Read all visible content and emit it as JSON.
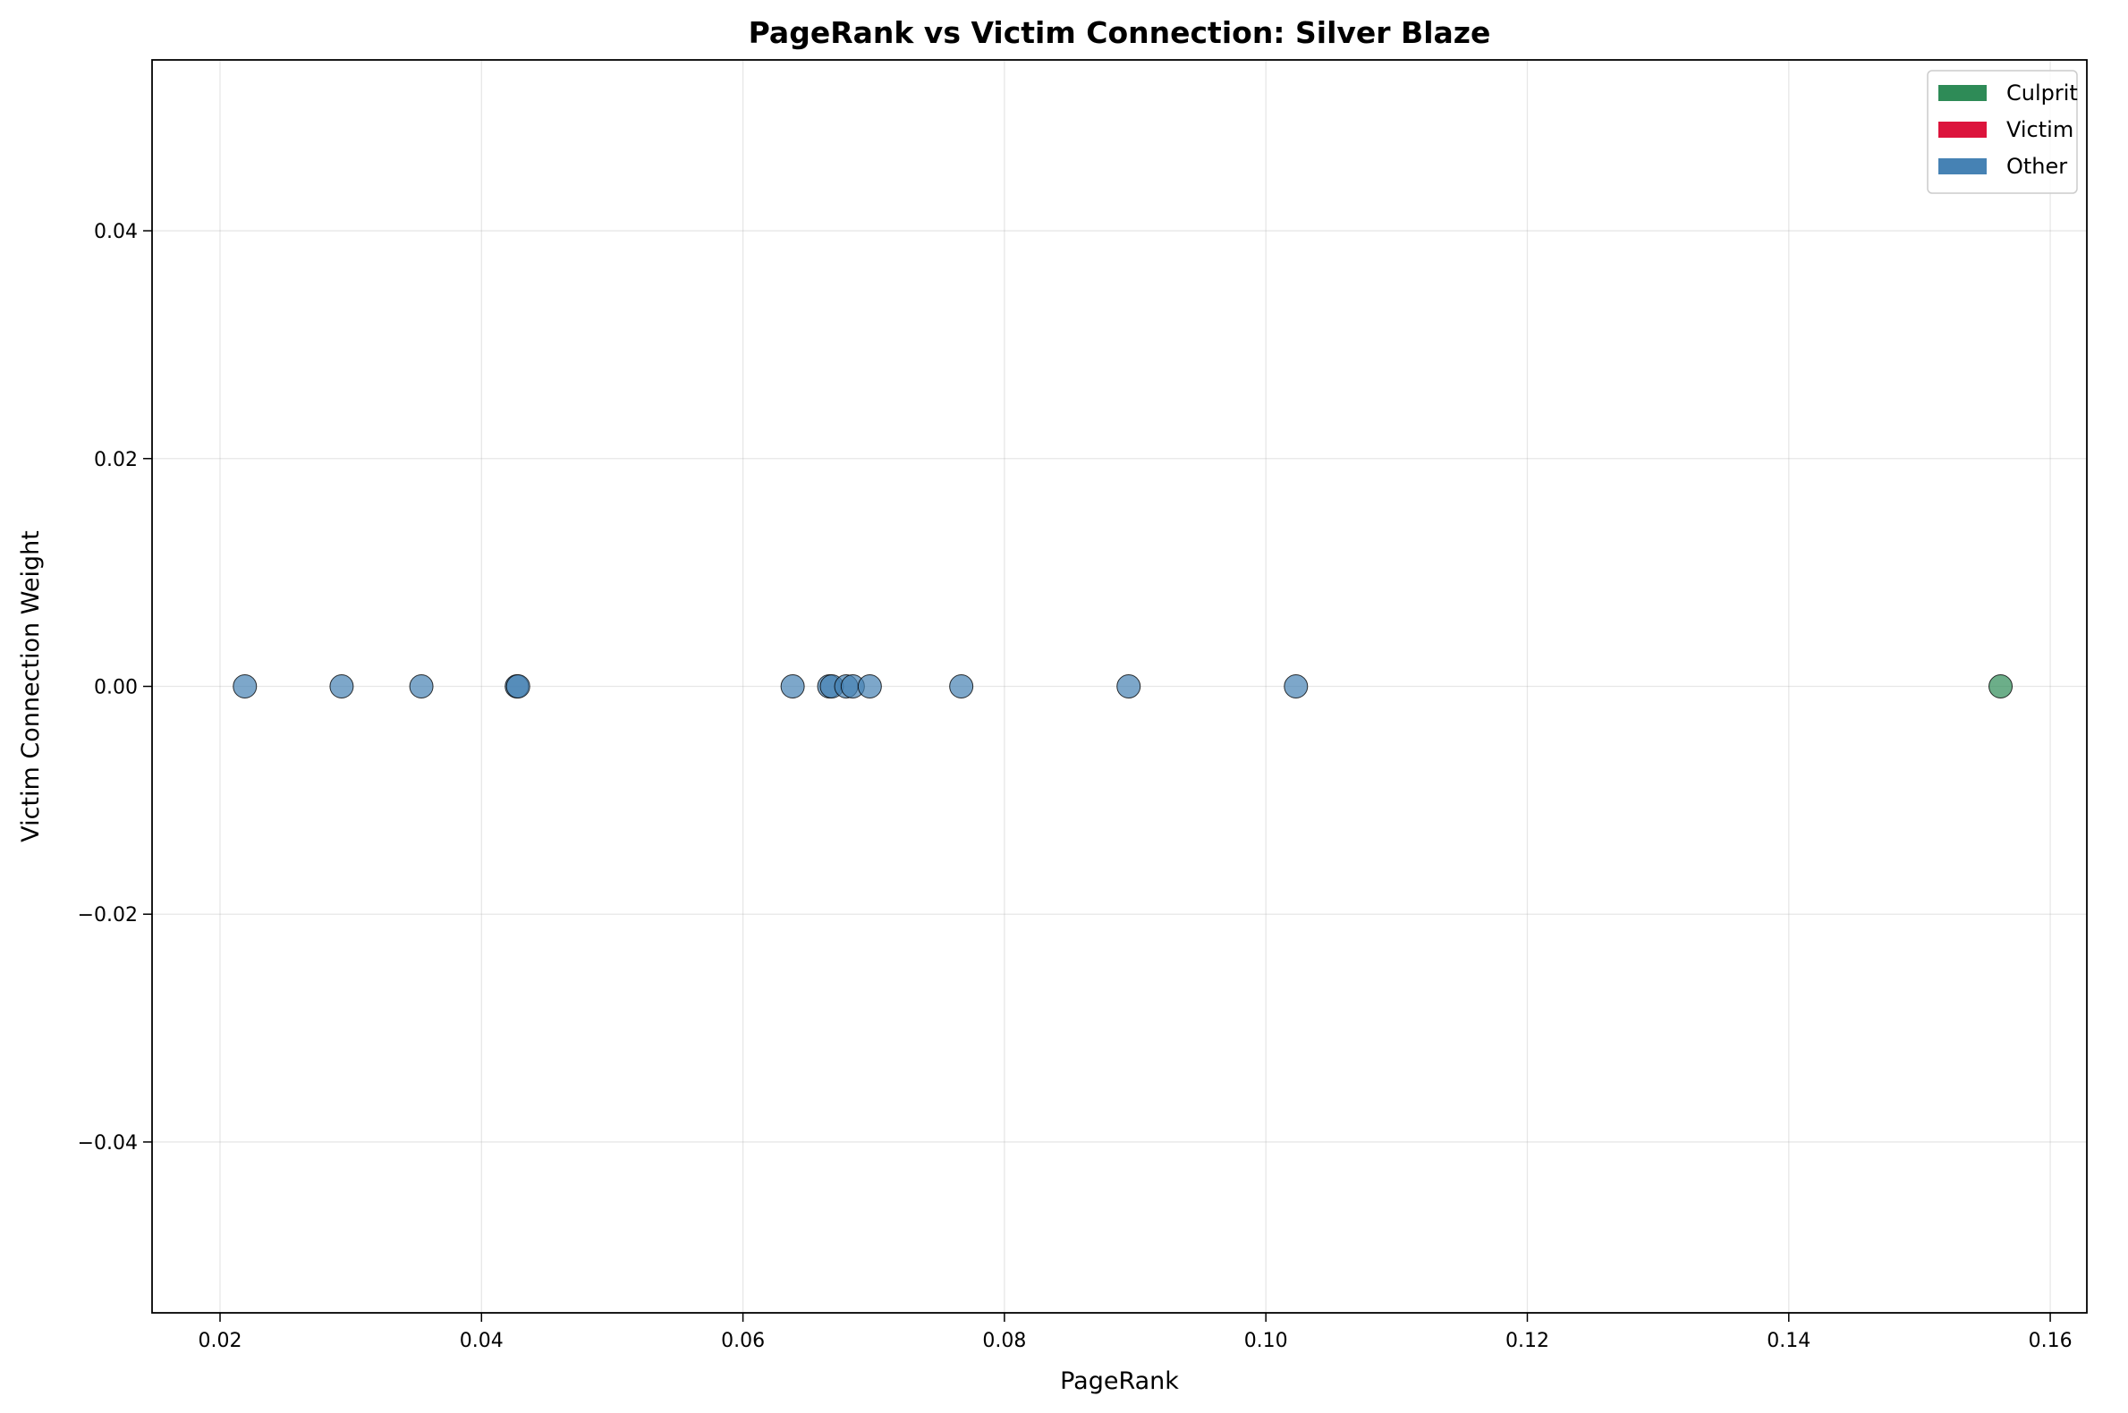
{
  "chart_data": {
    "type": "scatter",
    "title": "PageRank vs Victim Connection: Silver Blaze",
    "xlabel": "PageRank",
    "ylabel": "Victim Connection Weight",
    "xlim": [
      0.0148,
      0.1628
    ],
    "ylim": [
      -0.055,
      0.055
    ],
    "xticks": [
      0.02,
      0.04,
      0.06,
      0.08,
      0.1,
      0.12,
      0.14,
      0.16
    ],
    "xtick_labels": [
      "0.02",
      "0.04",
      "0.06",
      "0.08",
      "0.10",
      "0.12",
      "0.14",
      "0.16"
    ],
    "yticks": [
      -0.04,
      -0.02,
      0.0,
      0.02,
      0.04
    ],
    "ytick_labels": [
      "−0.04",
      "−0.02",
      "0.00",
      "0.02",
      "0.04"
    ],
    "grid": true,
    "legend_position": "top-right",
    "colors": {
      "Culprit": "#2e8b57",
      "Victim": "#dc143c",
      "Other": "#4682b4"
    },
    "legend": [
      {
        "label": "Culprit",
        "color": "#2e8b57"
      },
      {
        "label": "Victim",
        "color": "#dc143c"
      },
      {
        "label": "Other",
        "color": "#4682b4"
      }
    ],
    "series": [
      {
        "name": "Other",
        "points": [
          {
            "x": 0.0219,
            "y": 0.0
          },
          {
            "x": 0.0293,
            "y": 0.0
          },
          {
            "x": 0.0354,
            "y": 0.0
          },
          {
            "x": 0.0427,
            "y": 0.0
          },
          {
            "x": 0.0428,
            "y": 0.0
          },
          {
            "x": 0.0638,
            "y": 0.0
          },
          {
            "x": 0.0666,
            "y": 0.0
          },
          {
            "x": 0.0668,
            "y": 0.0
          },
          {
            "x": 0.0679,
            "y": 0.0
          },
          {
            "x": 0.0684,
            "y": 0.0
          },
          {
            "x": 0.0697,
            "y": 0.0
          },
          {
            "x": 0.0767,
            "y": 0.0
          },
          {
            "x": 0.0895,
            "y": 0.0
          },
          {
            "x": 0.1023,
            "y": 0.0
          }
        ]
      },
      {
        "name": "Culprit",
        "points": [
          {
            "x": 0.1562,
            "y": 0.0
          }
        ]
      }
    ]
  }
}
